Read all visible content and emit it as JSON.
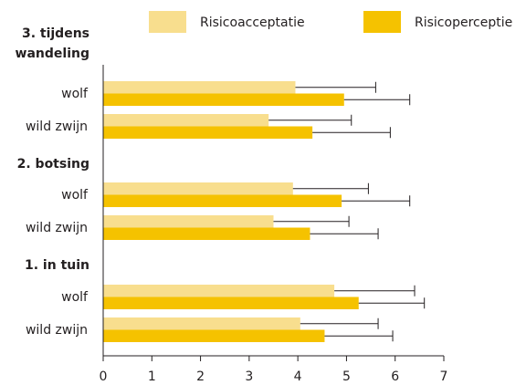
{
  "chart_data": {
    "type": "bar",
    "orientation": "horizontal",
    "xlim": [
      0,
      7
    ],
    "x_ticks": [
      "0",
      "1",
      "2",
      "3",
      "4",
      "5",
      "6",
      "7"
    ],
    "grid": false,
    "legend_position": "top-right",
    "colors": {
      "acceptatie": "#f8de8e",
      "perceptie": "#f5c200",
      "axis": "#231f20",
      "error": "#231f20"
    },
    "series": [
      {
        "name": "Risicoacceptatie",
        "key": "acceptatie"
      },
      {
        "name": "Risicoperceptie",
        "key": "perceptie"
      }
    ],
    "groups": [
      {
        "title_lines": [
          "3. tijdens",
          "wandeling"
        ],
        "rows": [
          {
            "label": "wolf",
            "acceptatie": {
              "value": 3.95,
              "error": 1.65
            },
            "perceptie": {
              "value": 4.95,
              "error": 1.35
            }
          },
          {
            "label": "wild zwijn",
            "acceptatie": {
              "value": 3.4,
              "error": 1.7
            },
            "perceptie": {
              "value": 4.3,
              "error": 1.6
            }
          }
        ]
      },
      {
        "title_lines": [
          "2. botsing"
        ],
        "rows": [
          {
            "label": "wolf",
            "acceptatie": {
              "value": 3.9,
              "error": 1.55
            },
            "perceptie": {
              "value": 4.9,
              "error": 1.4
            }
          },
          {
            "label": "wild zwijn",
            "acceptatie": {
              "value": 3.5,
              "error": 1.55
            },
            "perceptie": {
              "value": 4.25,
              "error": 1.4
            }
          }
        ]
      },
      {
        "title_lines": [
          "1. in tuin"
        ],
        "rows": [
          {
            "label": "wolf",
            "acceptatie": {
              "value": 4.75,
              "error": 1.65
            },
            "perceptie": {
              "value": 5.25,
              "error": 1.35
            }
          },
          {
            "label": "wild zwijn",
            "acceptatie": {
              "value": 4.05,
              "error": 1.6
            },
            "perceptie": {
              "value": 4.55,
              "error": 1.4
            }
          }
        ]
      }
    ]
  }
}
